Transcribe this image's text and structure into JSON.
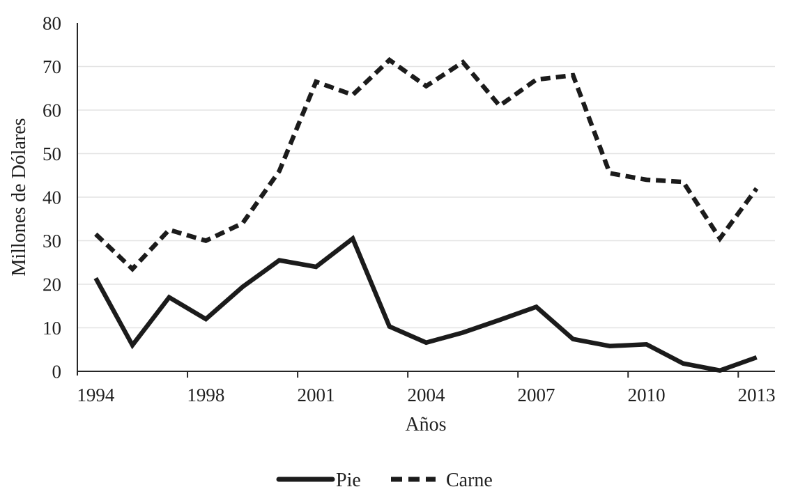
{
  "figure": {
    "background_color": "#ffffff",
    "series_line_color": "#1b1b1b",
    "gridline_color": "#e3e3e3",
    "axis_color": "#262626",
    "text_color": "#1f1f1f"
  },
  "chart_data": {
    "type": "line",
    "title": "",
    "xlabel": "Años",
    "ylabel": "Millones de Dólares",
    "ylim": [
      0,
      80
    ],
    "y_ticks": [
      0,
      10,
      20,
      30,
      40,
      50,
      60,
      70,
      80
    ],
    "x_tick_labels": [
      "1994",
      "1998",
      "2001",
      "2004",
      "2007",
      "2010",
      "2013"
    ],
    "x_tick_indices": [
      0,
      3,
      6,
      9,
      12,
      15,
      18
    ],
    "n_points": 19,
    "grid": "horizontal",
    "legend_position": "bottom-center",
    "series": [
      {
        "name": "Pie",
        "style": "solid",
        "values": [
          21.4,
          6.0,
          17.0,
          12.0,
          19.4,
          25.5,
          24.0,
          30.5,
          10.3,
          6.6,
          8.9,
          11.8,
          14.8,
          7.4,
          5.8,
          6.2,
          1.8,
          0.2,
          3.2
        ]
      },
      {
        "name": "Carne",
        "style": "dashed",
        "values": [
          31.5,
          23.5,
          32.5,
          30.0,
          34.0,
          46.0,
          66.5,
          63.5,
          71.5,
          65.5,
          71.0,
          61.0,
          67.0,
          68.0,
          45.5,
          44.0,
          43.5,
          30.5,
          42.0
        ]
      }
    ]
  }
}
